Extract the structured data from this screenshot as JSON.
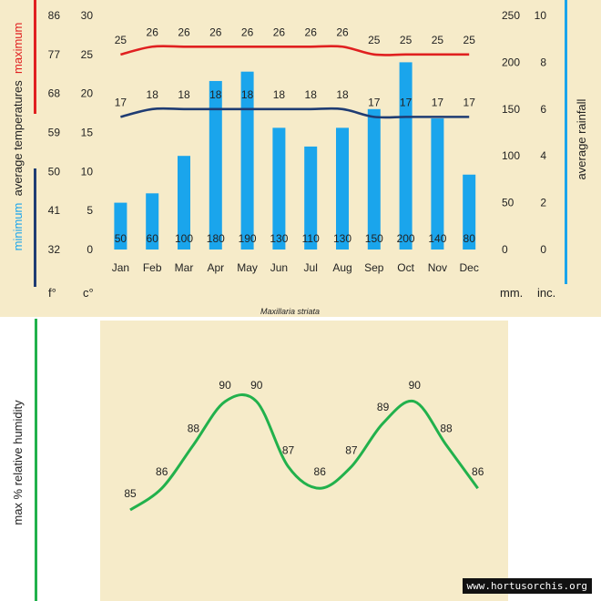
{
  "caption": "Maxillaria striata",
  "watermark": "www.hortusorchis.org",
  "labels": {
    "maximum": "maximum",
    "minimum": "minimum",
    "average_temperatures": "average  temperatures",
    "average_rainfall": "average rainfall",
    "humidity": "max %  relative humidity",
    "unit_f": "f°",
    "unit_c": "c°",
    "unit_mm": "mm.",
    "unit_inc": "inc."
  },
  "colors": {
    "panel": "#f6ebc9",
    "maximum": "#e02020",
    "minimum": "#1f3c73",
    "rainfall": "#1aa5ec",
    "humidity": "#22b14c",
    "axis_text": "#222222"
  },
  "chart_data": [
    {
      "type": "bar",
      "categories": [
        "Jan",
        "Feb",
        "Mar",
        "Apr",
        "May",
        "Jun",
        "Jul",
        "Aug",
        "Sep",
        "Oct",
        "Nov",
        "Dec"
      ],
      "axes": {
        "fahrenheit_ticks": [
          "32",
          "41",
          "50",
          "59",
          "68",
          "77",
          "86"
        ],
        "celsius_ticks": [
          "0",
          "5",
          "10",
          "15",
          "20",
          "25",
          "30"
        ],
        "mm_ticks": [
          "0",
          "50",
          "100",
          "150",
          "200",
          "250"
        ],
        "inch_ticks": [
          "0",
          "2",
          "4",
          "6",
          "8",
          "10"
        ]
      },
      "ylim_celsius": [
        0,
        30
      ],
      "ylim_mm": [
        0,
        250
      ],
      "series": [
        {
          "name": "maximum",
          "type": "line",
          "values": [
            25,
            26,
            26,
            26,
            26,
            26,
            26,
            26,
            25,
            25,
            25,
            25
          ]
        },
        {
          "name": "minimum",
          "type": "line",
          "values": [
            17,
            18,
            18,
            18,
            18,
            18,
            18,
            18,
            17,
            17,
            17,
            17
          ]
        },
        {
          "name": "average rainfall",
          "type": "bar",
          "values": [
            50,
            60,
            100,
            180,
            190,
            130,
            110,
            130,
            150,
            200,
            140,
            80
          ]
        }
      ]
    },
    {
      "type": "line",
      "name": "max % relative humidity",
      "values": [
        85,
        86,
        88,
        90,
        90,
        87,
        86,
        87,
        89,
        90,
        88,
        86
      ]
    }
  ]
}
